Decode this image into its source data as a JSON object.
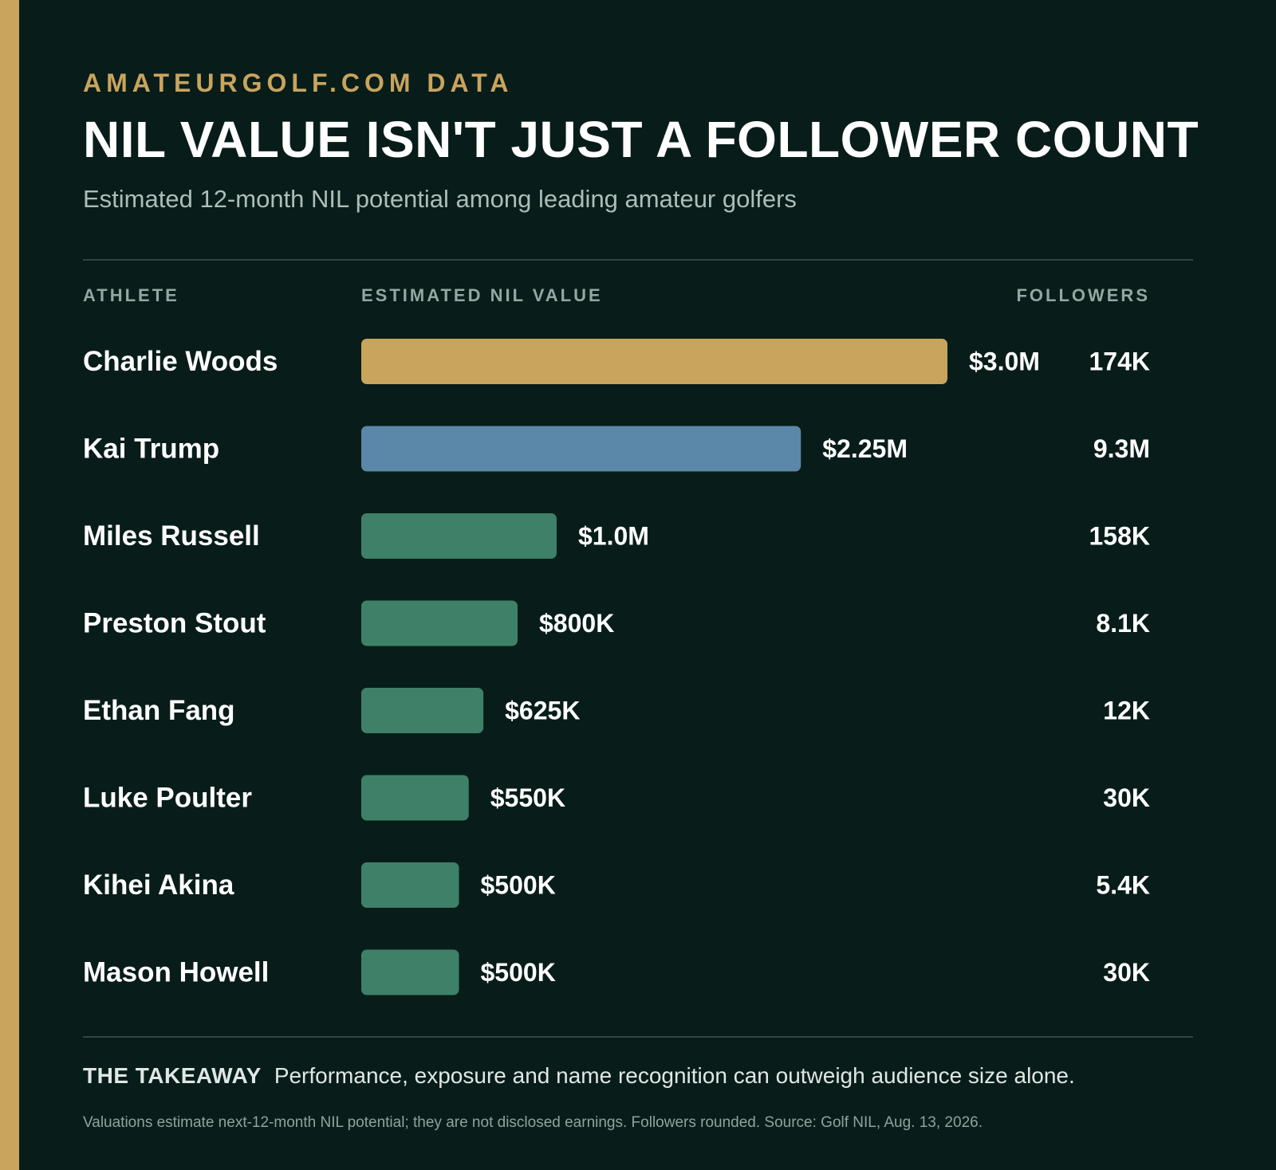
{
  "header": {
    "kicker": "AMATEURGOLF.COM DATA",
    "title": "NIL VALUE ISN'T JUST A FOLLOWER COUNT",
    "subtitle": "Estimated 12-month NIL potential among leading amateur golfers"
  },
  "columns": {
    "athlete": "ATHLETE",
    "value": "ESTIMATED NIL VALUE",
    "followers": "FOLLOWERS"
  },
  "colors": {
    "background": "#081d19",
    "gold": "#c9a45d",
    "blue": "#5b87a8",
    "green": "#3e8168",
    "text": "#ffffff"
  },
  "chart_data": {
    "type": "bar",
    "orientation": "horizontal",
    "categories": [
      "Charlie Woods",
      "Kai Trump",
      "Miles Russell",
      "Preston Stout",
      "Ethan Fang",
      "Luke Poulter",
      "Kihei Akina",
      "Mason Howell"
    ],
    "values": [
      3000000,
      2250000,
      1000000,
      800000,
      625000,
      550000,
      500000,
      500000
    ],
    "value_labels": [
      "$3.0M",
      "$2.25M",
      "$1.0M",
      "$800K",
      "$625K",
      "$550K",
      "$500K",
      "$500K"
    ],
    "followers": [
      "174K",
      "9.3M",
      "158K",
      "8.1K",
      "12K",
      "30K",
      "5.4K",
      "30K"
    ],
    "bar_colors": [
      "#c9a45d",
      "#5b87a8",
      "#3e8168",
      "#3e8168",
      "#3e8168",
      "#3e8168",
      "#3e8168",
      "#3e8168"
    ],
    "xlim": [
      0,
      3000000
    ],
    "grid": false,
    "legend": "none"
  },
  "takeaway": {
    "label": "THE TAKEAWAY",
    "text": "Performance, exposure and name recognition can outweigh audience size alone."
  },
  "footnote": "Valuations estimate next-12-month NIL potential; they are not disclosed earnings. Followers rounded. Source: Golf NIL, Aug. 13, 2026."
}
